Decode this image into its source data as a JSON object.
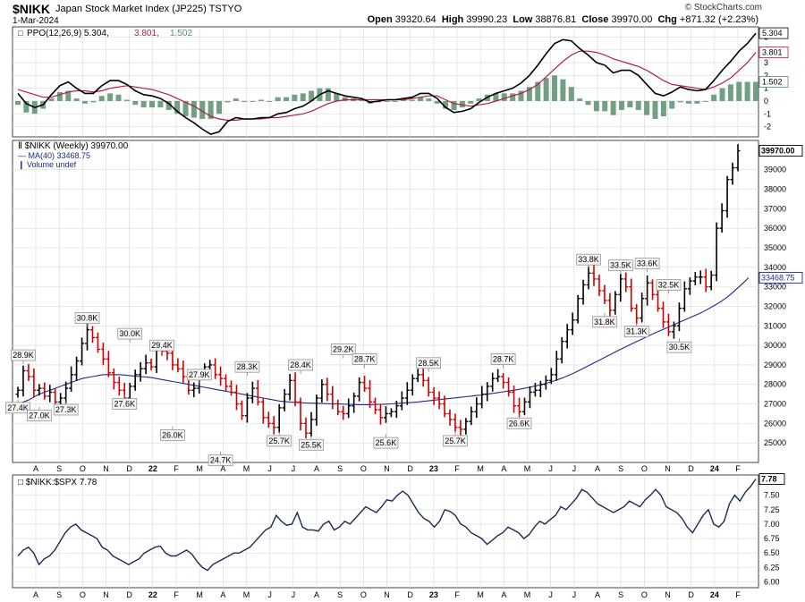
{
  "header": {
    "symbol": "$NIKK",
    "description": "Japan Stock Market Index (JP225)  TSTYO",
    "date": "1-Mar-2024",
    "brand": "© StockCharts.com",
    "open_label": "Open",
    "open": "39320.64",
    "high_label": "High",
    "high": "39990.23",
    "low_label": "Low",
    "low": "38876.81",
    "close_label": "Close",
    "close": "39970.00",
    "chg_label": "Chg",
    "chg": "+871.32 (+2.23%)"
  },
  "colors": {
    "up": "#000000",
    "down": "#cc0000",
    "ma": "#1f2a8c",
    "ppo_signal": "#b0203a",
    "hist": "#5a8f6e",
    "ratio": "#1c2b55",
    "grid": "#d8d8d8"
  },
  "chart_data": [
    {
      "type": "line",
      "panel": "PPO",
      "legend": {
        "ppo": "PPO(12,26,9) 5.304,",
        "signal": "3.801,",
        "hist": "1.502"
      },
      "last_values": {
        "ppo": "5.304",
        "signal": "3.801",
        "hist": "1.502"
      },
      "ylim": [
        -2.8,
        5.8
      ],
      "ticks": [
        "5",
        "4",
        "3",
        "2",
        "1",
        "0",
        "-1",
        "-2"
      ],
      "ppo": [
        0.6,
        -0.2,
        -0.5,
        -0.3,
        0.5,
        1.2,
        1.5,
        1.0,
        0.6,
        0.6,
        1.2,
        1.6,
        1.6,
        1.3,
        0.8,
        0.5,
        0.4,
        0.2,
        -0.2,
        -0.8,
        -1.3,
        -1.7,
        -2.2,
        -2.6,
        -2.4,
        -1.6,
        -1.3,
        -1.4,
        -1.4,
        -1.3,
        -1.3,
        -1.0,
        -0.9,
        -0.6,
        -0.4,
        0.0,
        0.5,
        0.8,
        0.6,
        0.4,
        0.3,
        0.2,
        -0.1,
        0.0,
        0.1,
        0.1,
        0.2,
        0.3,
        0.6,
        0.6,
        0.2,
        -0.5,
        -0.9,
        -0.8,
        -0.6,
        -0.1,
        0.3,
        0.6,
        0.8,
        1.0,
        1.4,
        2.0,
        2.8,
        3.7,
        4.5,
        4.8,
        4.7,
        4.1,
        3.6,
        3.0,
        2.8,
        2.2,
        2.4,
        2.4,
        2.0,
        1.3,
        0.6,
        0.4,
        0.7,
        1.1,
        0.9,
        0.8,
        0.9,
        1.6,
        2.4,
        3.1,
        3.9,
        4.5,
        5.3
      ],
      "signal": [
        0.9,
        0.7,
        0.5,
        0.3,
        0.3,
        0.5,
        0.7,
        0.8,
        0.8,
        0.7,
        0.8,
        1.0,
        1.1,
        1.2,
        1.1,
        1.0,
        0.9,
        0.7,
        0.5,
        0.2,
        -0.1,
        -0.4,
        -0.8,
        -1.2,
        -1.4,
        -1.5,
        -1.5,
        -1.4,
        -1.4,
        -1.4,
        -1.3,
        -1.3,
        -1.2,
        -1.1,
        -1.0,
        -0.8,
        -0.5,
        -0.2,
        0.0,
        0.1,
        0.1,
        0.1,
        0.1,
        0.1,
        0.1,
        0.1,
        0.1,
        0.2,
        0.3,
        0.4,
        0.4,
        0.1,
        -0.2,
        -0.3,
        -0.4,
        -0.3,
        -0.2,
        0.0,
        0.2,
        0.4,
        0.6,
        0.9,
        1.3,
        1.9,
        2.5,
        3.1,
        3.6,
        3.9,
        3.9,
        3.8,
        3.6,
        3.3,
        3.1,
        2.9,
        2.7,
        2.4,
        2.0,
        1.6,
        1.3,
        1.2,
        1.1,
        1.0,
        0.9,
        1.1,
        1.4,
        1.8,
        2.4,
        3.0,
        3.8
      ]
    },
    {
      "type": "bar",
      "panel": "price",
      "legend": {
        "price": "$NIKK (Weekly) 39970.00",
        "ma": "MA(40) 33468.75",
        "volume": "Volume undef"
      },
      "close_label": "39970.00",
      "ma_label": "33468.75",
      "ylim": [
        24000,
        40500
      ],
      "ticks": [
        25000,
        26000,
        27000,
        28000,
        29000,
        30000,
        31000,
        32000,
        33000,
        34000,
        35000,
        36000,
        37000,
        38000,
        39000
      ],
      "x_labels": [
        "A",
        "S",
        "O",
        "N",
        "D",
        "22",
        "F",
        "M",
        "A",
        "M",
        "J",
        "J",
        "A",
        "S",
        "O",
        "N",
        "D",
        "23",
        "F",
        "M",
        "A",
        "M",
        "J",
        "J",
        "A",
        "S",
        "O",
        "N",
        "D",
        "24",
        "F"
      ],
      "weeks": 136,
      "closes": [
        27700,
        28700,
        28400,
        27700,
        27800,
        27400,
        27600,
        27100,
        27300,
        27800,
        28500,
        29200,
        30100,
        30800,
        30400,
        29800,
        29300,
        28600,
        28100,
        27700,
        27300,
        27900,
        28500,
        28800,
        29100,
        28900,
        29900,
        29700,
        29600,
        29000,
        28800,
        28400,
        27700,
        27800,
        28400,
        28900,
        29000,
        28500,
        28300,
        27900,
        27600,
        27000,
        26400,
        27300,
        27800,
        27100,
        26300,
        26000,
        25800,
        26800,
        27500,
        28200,
        27100,
        26000,
        25500,
        26200,
        27300,
        28000,
        27500,
        27000,
        26600,
        26500,
        26900,
        27400,
        28100,
        27800,
        27100,
        26700,
        26300,
        26500,
        26600,
        26900,
        27300,
        27700,
        28300,
        28500,
        28200,
        27600,
        27300,
        27000,
        26500,
        26200,
        25800,
        25700,
        26100,
        26600,
        27000,
        27500,
        27900,
        28300,
        28400,
        28100,
        27600,
        26900,
        26600,
        27100,
        27600,
        27700,
        28000,
        28200,
        28500,
        29300,
        30200,
        30800,
        31300,
        32400,
        33100,
        33700,
        33400,
        32800,
        32300,
        31800,
        32600,
        33400,
        33000,
        31900,
        31400,
        32400,
        33200,
        32600,
        31900,
        31200,
        30700,
        31000,
        31900,
        32900,
        33300,
        33500,
        33500,
        33000,
        33600,
        36000,
        36900,
        38500,
        39100,
        39970
      ],
      "ma40": [
        27000,
        27100,
        27200,
        27350,
        27500,
        27600,
        27700,
        27800,
        27900,
        28000,
        28100,
        28200,
        28300,
        28350,
        28400,
        28450,
        28500,
        28500,
        28500,
        28500,
        28480,
        28450,
        28420,
        28400,
        28380,
        28350,
        28300,
        28250,
        28200,
        28150,
        28100,
        28050,
        28000,
        27950,
        27900,
        27850,
        27800,
        27750,
        27700,
        27650,
        27600,
        27550,
        27500,
        27450,
        27400,
        27350,
        27300,
        27250,
        27200,
        27150,
        27120,
        27100,
        27080,
        27060,
        27050,
        27040,
        27030,
        27020,
        27010,
        27000,
        27000,
        26990,
        26980,
        26970,
        26960,
        26960,
        26960,
        26970,
        26980,
        26990,
        27000,
        27020,
        27040,
        27060,
        27080,
        27100,
        27130,
        27160,
        27190,
        27220,
        27250,
        27280,
        27310,
        27340,
        27370,
        27400,
        27430,
        27460,
        27500,
        27540,
        27580,
        27620,
        27660,
        27700,
        27750,
        27800,
        27860,
        27920,
        27980,
        28050,
        28130,
        28220,
        28320,
        28430,
        28550,
        28680,
        28820,
        28960,
        29100,
        29240,
        29380,
        29520,
        29660,
        29800,
        29930,
        30060,
        30190,
        30320,
        30450,
        30580,
        30700,
        30820,
        30940,
        31060,
        31180,
        31300,
        31420,
        31540,
        31660,
        31800,
        31950,
        32110,
        32280,
        32470,
        32700,
        32950,
        33200,
        33468
      ],
      "annotations": [
        {
          "w": 0,
          "v": 27400,
          "t": "27.4K",
          "pos": "below"
        },
        {
          "w": 1,
          "v": 28900,
          "t": "28.9K",
          "pos": "above"
        },
        {
          "w": 4,
          "v": 27000,
          "t": "27.0K",
          "pos": "below"
        },
        {
          "w": 9,
          "v": 27300,
          "t": "27.3K",
          "pos": "below"
        },
        {
          "w": 13,
          "v": 30800,
          "t": "30.8K",
          "pos": "above"
        },
        {
          "w": 20,
          "v": 27600,
          "t": "27.6K",
          "pos": "below"
        },
        {
          "w": 21,
          "v": 30000,
          "t": "30.0K",
          "pos": "above"
        },
        {
          "w": 27,
          "v": 29400,
          "t": "29.4K",
          "pos": "above"
        },
        {
          "w": 34,
          "v": 27900,
          "t": "27.9K",
          "pos": "above"
        },
        {
          "w": 29,
          "v": 26000,
          "t": "26.0K",
          "pos": "below"
        },
        {
          "w": 38,
          "v": 24700,
          "t": "24.7K",
          "pos": "below"
        },
        {
          "w": 43,
          "v": 28300,
          "t": "28.3K",
          "pos": "above"
        },
        {
          "w": 49,
          "v": 25700,
          "t": "25.7K",
          "pos": "below"
        },
        {
          "w": 53,
          "v": 28400,
          "t": "28.4K",
          "pos": "above"
        },
        {
          "w": 55,
          "v": 25500,
          "t": "25.5K",
          "pos": "below"
        },
        {
          "w": 61,
          "v": 29200,
          "t": "29.2K",
          "pos": "above"
        },
        {
          "w": 65,
          "v": 28700,
          "t": "28.7K",
          "pos": "above"
        },
        {
          "w": 69,
          "v": 25600,
          "t": "25.6K",
          "pos": "below"
        },
        {
          "w": 77,
          "v": 28500,
          "t": "28.5K",
          "pos": "above"
        },
        {
          "w": 82,
          "v": 25700,
          "t": "25.7K",
          "pos": "below"
        },
        {
          "w": 91,
          "v": 28700,
          "t": "28.7K",
          "pos": "above"
        },
        {
          "w": 94,
          "v": 26600,
          "t": "26.6K",
          "pos": "below"
        },
        {
          "w": 107,
          "v": 33800,
          "t": "33.8K",
          "pos": "above"
        },
        {
          "w": 110,
          "v": 31800,
          "t": "31.8K",
          "pos": "below"
        },
        {
          "w": 113,
          "v": 33500,
          "t": "33.5K",
          "pos": "above"
        },
        {
          "w": 116,
          "v": 31300,
          "t": "31.3K",
          "pos": "below"
        },
        {
          "w": 118,
          "v": 33600,
          "t": "33.6K",
          "pos": "above"
        },
        {
          "w": 122,
          "v": 32500,
          "t": "32.5K",
          "pos": "above"
        },
        {
          "w": 124,
          "v": 30500,
          "t": "30.5K",
          "pos": "below"
        }
      ]
    },
    {
      "type": "line",
      "panel": "ratio",
      "legend": "$NIKK:$SPX 7.78",
      "last_value": "7.78",
      "ylim": [
        5.9,
        7.85
      ],
      "ticks": [
        "7.50",
        "7.25",
        "7.00",
        "6.75",
        "6.50",
        "6.25",
        "6.00"
      ],
      "values": [
        6.45,
        6.55,
        6.6,
        6.5,
        6.3,
        6.4,
        6.45,
        6.55,
        6.7,
        6.85,
        6.95,
        7.0,
        6.9,
        6.85,
        6.8,
        6.75,
        6.6,
        6.55,
        6.45,
        6.4,
        6.35,
        6.3,
        6.35,
        6.4,
        6.5,
        6.55,
        6.6,
        6.62,
        6.5,
        6.45,
        6.45,
        6.5,
        6.55,
        6.48,
        6.35,
        6.25,
        6.2,
        6.3,
        6.35,
        6.4,
        6.45,
        6.5,
        6.5,
        6.55,
        6.6,
        6.7,
        6.8,
        6.9,
        6.95,
        7.15,
        7.05,
        6.98,
        7.0,
        7.2,
        6.95,
        6.9,
        6.9,
        6.88,
        7.0,
        7.05,
        6.9,
        6.95,
        7.05,
        7.0,
        7.1,
        7.2,
        7.3,
        7.25,
        7.2,
        7.3,
        7.42,
        7.4,
        7.5,
        7.57,
        7.5,
        7.35,
        7.2,
        7.1,
        7.05,
        6.95,
        7.05,
        7.25,
        7.22,
        7.15,
        7.0,
        6.95,
        6.85,
        6.8,
        6.75,
        6.65,
        6.72,
        6.8,
        6.85,
        6.95,
        6.9,
        6.85,
        6.75,
        6.82,
        6.95,
        7.05,
        7.0,
        7.08,
        7.15,
        7.3,
        7.25,
        7.35,
        7.45,
        7.6,
        7.55,
        7.45,
        7.35,
        7.3,
        7.25,
        7.2,
        7.25,
        7.3,
        7.4,
        7.35,
        7.3,
        7.42,
        7.5,
        7.6,
        7.5,
        7.3,
        7.25,
        7.2,
        7.1,
        6.95,
        6.85,
        7.0,
        7.15,
        7.25,
        7.0,
        6.95,
        7.05,
        7.35,
        7.5,
        7.4,
        7.55,
        7.65,
        7.78
      ],
      "x_labels": [
        "A",
        "S",
        "O",
        "N",
        "D",
        "22",
        "F",
        "M",
        "A",
        "M",
        "J",
        "J",
        "A",
        "S",
        "O",
        "N",
        "D",
        "23",
        "F",
        "M",
        "A",
        "M",
        "J",
        "J",
        "A",
        "S",
        "O",
        "N",
        "D",
        "24",
        "F"
      ]
    }
  ]
}
